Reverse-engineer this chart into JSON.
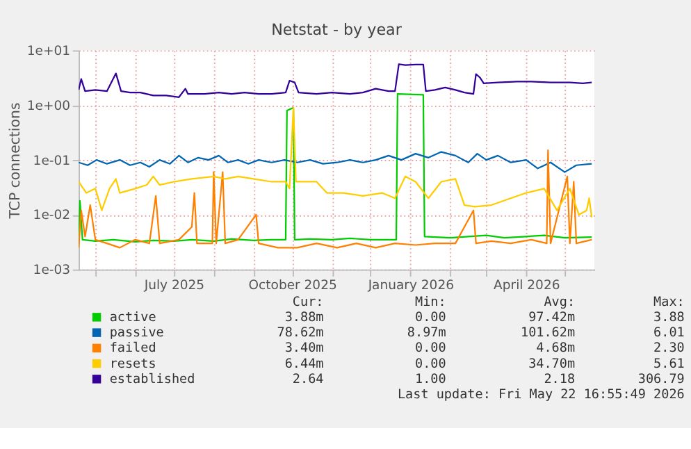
{
  "chart_data": {
    "type": "line",
    "title": "Netstat - by year",
    "ylabel": "TCP connections",
    "log": true,
    "grid": true,
    "legend": "bottom",
    "line_style": "solid",
    "marker": "none",
    "xlim": [
      "2025-04-18",
      "2026-05-24"
    ],
    "xticks": [
      {
        "value": "2025-05-01",
        "label": null
      },
      {
        "value": "2025-06-01",
        "label": null
      },
      {
        "value": "2025-07-01",
        "label": "July 2025"
      },
      {
        "value": "2025-08-01",
        "label": null
      },
      {
        "value": "2025-09-01",
        "label": null
      },
      {
        "value": "2025-10-01",
        "label": "October 2025"
      },
      {
        "value": "2025-11-01",
        "label": null
      },
      {
        "value": "2025-12-01",
        "label": null
      },
      {
        "value": "2026-01-01",
        "label": "January 2026"
      },
      {
        "value": "2026-02-01",
        "label": null
      },
      {
        "value": "2026-03-01",
        "label": null
      },
      {
        "value": "2026-04-01",
        "label": "April 2026"
      },
      {
        "value": "2026-05-01",
        "label": null
      }
    ],
    "ylim": [
      0.001,
      10
    ],
    "yticks": [
      {
        "value": 0.001,
        "label": "1e-03"
      },
      {
        "value": 0.01,
        "label": "1e-02"
      },
      {
        "value": 0.1,
        "label": "1e-01"
      },
      {
        "value": 1,
        "label": "1e+00"
      },
      {
        "value": 10,
        "label": "1e+01"
      }
    ],
    "series": [
      {
        "name": "active",
        "color": "#00cc00",
        "x": [
          "2025-04-18",
          "2025-04-19",
          "2025-04-21",
          "2025-05-01",
          "2025-05-15",
          "2025-06-01",
          "2025-06-15",
          "2025-07-01",
          "2025-07-15",
          "2025-08-01",
          "2025-08-15",
          "2025-09-01",
          "2025-09-15",
          "2025-09-26",
          "2025-09-27",
          "2025-10-02",
          "2025-10-03",
          "2025-10-15",
          "2025-11-01",
          "2025-11-15",
          "2025-12-01",
          "2025-12-21",
          "2025-12-22",
          "2026-01-11",
          "2026-01-12",
          "2026-02-01",
          "2026-02-15",
          "2026-03-01",
          "2026-03-15",
          "2026-04-01",
          "2026-04-15",
          "2026-05-01",
          "2026-05-22"
        ],
        "values": [
          0.003,
          0.018,
          0.0035,
          0.0033,
          0.0035,
          0.0032,
          0.0034,
          0.0033,
          0.0035,
          0.0033,
          0.0036,
          0.0034,
          0.0035,
          0.0035,
          0.8,
          0.9,
          0.0035,
          0.0036,
          0.0035,
          0.0037,
          0.0035,
          0.0035,
          1.6,
          1.55,
          0.004,
          0.0038,
          0.004,
          0.0042,
          0.0038,
          0.004,
          0.0042,
          0.0038,
          0.0039
        ]
      },
      {
        "name": "passive",
        "color": "#0066b3",
        "x": [
          "2025-04-18",
          "2025-04-25",
          "2025-05-02",
          "2025-05-10",
          "2025-05-20",
          "2025-05-28",
          "2025-06-05",
          "2025-06-12",
          "2025-06-20",
          "2025-06-28",
          "2025-07-05",
          "2025-07-12",
          "2025-07-20",
          "2025-07-28",
          "2025-08-05",
          "2025-08-12",
          "2025-08-20",
          "2025-08-28",
          "2025-09-05",
          "2025-09-15",
          "2025-09-25",
          "2025-10-05",
          "2025-10-15",
          "2025-10-25",
          "2025-11-05",
          "2025-11-15",
          "2025-11-25",
          "2025-12-05",
          "2025-12-15",
          "2025-12-25",
          "2026-01-05",
          "2026-01-15",
          "2026-01-25",
          "2026-02-05",
          "2026-02-15",
          "2026-02-22",
          "2026-03-01",
          "2026-03-10",
          "2026-03-20",
          "2026-04-01",
          "2026-04-10",
          "2026-04-20",
          "2026-05-01",
          "2026-05-10",
          "2026-05-22"
        ],
        "values": [
          0.09,
          0.08,
          0.1,
          0.085,
          0.1,
          0.08,
          0.09,
          0.075,
          0.1,
          0.085,
          0.12,
          0.09,
          0.11,
          0.1,
          0.12,
          0.09,
          0.1,
          0.085,
          0.1,
          0.09,
          0.1,
          0.09,
          0.1,
          0.085,
          0.09,
          0.1,
          0.09,
          0.1,
          0.12,
          0.1,
          0.13,
          0.11,
          0.14,
          0.12,
          0.09,
          0.13,
          0.1,
          0.12,
          0.09,
          0.1,
          0.07,
          0.09,
          0.06,
          0.08,
          0.085
        ]
      },
      {
        "name": "failed",
        "color": "#ff8000",
        "x": [
          "2025-04-18",
          "2025-04-20",
          "2025-04-23",
          "2025-04-27",
          "2025-05-01",
          "2025-05-10",
          "2025-05-20",
          "2025-06-01",
          "2025-06-12",
          "2025-06-17",
          "2025-06-20",
          "2025-07-05",
          "2025-07-15",
          "2025-07-17",
          "2025-07-19",
          "2025-07-31",
          "2025-08-01",
          "2025-08-03",
          "2025-08-08",
          "2025-08-10",
          "2025-08-20",
          "2025-09-03",
          "2025-09-05",
          "2025-09-20",
          "2025-10-05",
          "2025-10-20",
          "2025-11-05",
          "2025-11-20",
          "2025-12-05",
          "2025-12-20",
          "2026-01-05",
          "2026-01-20",
          "2026-02-05",
          "2026-02-19",
          "2026-02-21",
          "2026-03-05",
          "2026-03-20",
          "2026-04-05",
          "2026-04-17",
          "2026-04-18",
          "2026-04-20",
          "2026-05-03",
          "2026-05-05",
          "2026-05-08",
          "2026-05-10",
          "2026-05-22"
        ],
        "values": [
          0.0025,
          0.012,
          0.004,
          0.015,
          0.0035,
          0.003,
          0.0025,
          0.0035,
          0.003,
          0.022,
          0.003,
          0.0035,
          0.006,
          0.025,
          0.003,
          0.003,
          0.06,
          0.003,
          0.06,
          0.003,
          0.0035,
          0.01,
          0.003,
          0.0025,
          0.0025,
          0.003,
          0.0025,
          0.003,
          0.0025,
          0.003,
          0.0028,
          0.003,
          0.003,
          0.012,
          0.003,
          0.0033,
          0.003,
          0.0035,
          0.003,
          0.15,
          0.003,
          0.05,
          0.003,
          0.04,
          0.003,
          0.0035
        ]
      },
      {
        "name": "resets",
        "color": "#ffcc00",
        "x": [
          "2025-04-18",
          "2025-04-24",
          "2025-05-01",
          "2025-05-06",
          "2025-05-12",
          "2025-05-17",
          "2025-05-20",
          "2025-06-01",
          "2025-06-10",
          "2025-06-15",
          "2025-06-20",
          "2025-07-01",
          "2025-07-15",
          "2025-08-01",
          "2025-08-10",
          "2025-08-20",
          "2025-09-01",
          "2025-09-15",
          "2025-09-26",
          "2025-09-29",
          "2025-10-02",
          "2025-10-04",
          "2025-10-20",
          "2025-10-28",
          "2025-11-10",
          "2025-11-25",
          "2025-12-10",
          "2025-12-20",
          "2025-12-28",
          "2026-01-05",
          "2026-01-15",
          "2026-01-25",
          "2026-02-05",
          "2026-02-12",
          "2026-02-20",
          "2026-03-05",
          "2026-03-20",
          "2026-04-01",
          "2026-04-15",
          "2026-04-25",
          "2026-05-05",
          "2026-05-12",
          "2026-05-18",
          "2026-05-20",
          "2026-05-22"
        ],
        "values": [
          0.04,
          0.025,
          0.03,
          0.012,
          0.03,
          0.045,
          0.025,
          0.03,
          0.035,
          0.05,
          0.035,
          0.04,
          0.045,
          0.05,
          0.045,
          0.05,
          0.045,
          0.04,
          0.04,
          0.03,
          0.9,
          0.04,
          0.04,
          0.025,
          0.025,
          0.022,
          0.025,
          0.02,
          0.05,
          0.04,
          0.02,
          0.04,
          0.045,
          0.015,
          0.014,
          0.015,
          0.02,
          0.025,
          0.03,
          0.012,
          0.03,
          0.01,
          0.012,
          0.02,
          0.009
        ]
      },
      {
        "name": "established",
        "color": "#330099",
        "x": [
          "2025-04-18",
          "2025-04-20",
          "2025-04-23",
          "2025-05-01",
          "2025-05-10",
          "2025-05-17",
          "2025-05-21",
          "2025-05-28",
          "2025-06-05",
          "2025-06-15",
          "2025-06-25",
          "2025-07-05",
          "2025-07-10",
          "2025-07-12",
          "2025-07-25",
          "2025-08-05",
          "2025-08-15",
          "2025-08-25",
          "2025-09-05",
          "2025-09-15",
          "2025-09-26",
          "2025-09-29",
          "2025-10-03",
          "2025-10-06",
          "2025-10-20",
          "2025-11-01",
          "2025-11-15",
          "2025-11-25",
          "2025-12-05",
          "2025-12-15",
          "2025-12-20",
          "2025-12-23",
          "2025-12-28",
          "2026-01-05",
          "2026-01-11",
          "2026-01-13",
          "2026-01-20",
          "2026-01-28",
          "2026-02-05",
          "2026-02-12",
          "2026-02-19",
          "2026-02-21",
          "2026-02-24",
          "2026-02-27",
          "2026-03-10",
          "2026-03-25",
          "2026-04-05",
          "2026-04-20",
          "2026-05-05",
          "2026-05-15",
          "2026-05-22"
        ],
        "values": [
          1.9,
          3.0,
          1.8,
          1.9,
          1.8,
          3.8,
          1.8,
          1.7,
          1.7,
          1.5,
          1.5,
          1.4,
          2.0,
          1.6,
          1.6,
          1.7,
          1.6,
          1.7,
          1.6,
          1.6,
          1.7,
          2.8,
          2.6,
          1.7,
          1.6,
          1.7,
          1.6,
          1.7,
          2.0,
          1.8,
          1.8,
          5.6,
          5.4,
          5.5,
          5.5,
          1.8,
          1.9,
          2.1,
          1.9,
          1.7,
          1.6,
          3.7,
          3.2,
          2.5,
          2.6,
          2.7,
          2.7,
          2.6,
          2.6,
          2.5,
          2.6
        ]
      }
    ],
    "annotations": [
      "Cur:",
      "Min:",
      "Avg:",
      "Max:",
      "3.88m",
      "0.00",
      "97.42m",
      "3.88",
      "78.62m",
      "8.97m",
      "101.62m",
      "6.01",
      "3.40m",
      "0.00",
      "4.68m",
      "2.30",
      "6.44m",
      "0.00",
      "34.70m",
      "5.61",
      "2.64",
      "1.00",
      "2.18",
      "306.79",
      "Last update: Fri May 22 16:55:49 2026"
    ]
  }
}
